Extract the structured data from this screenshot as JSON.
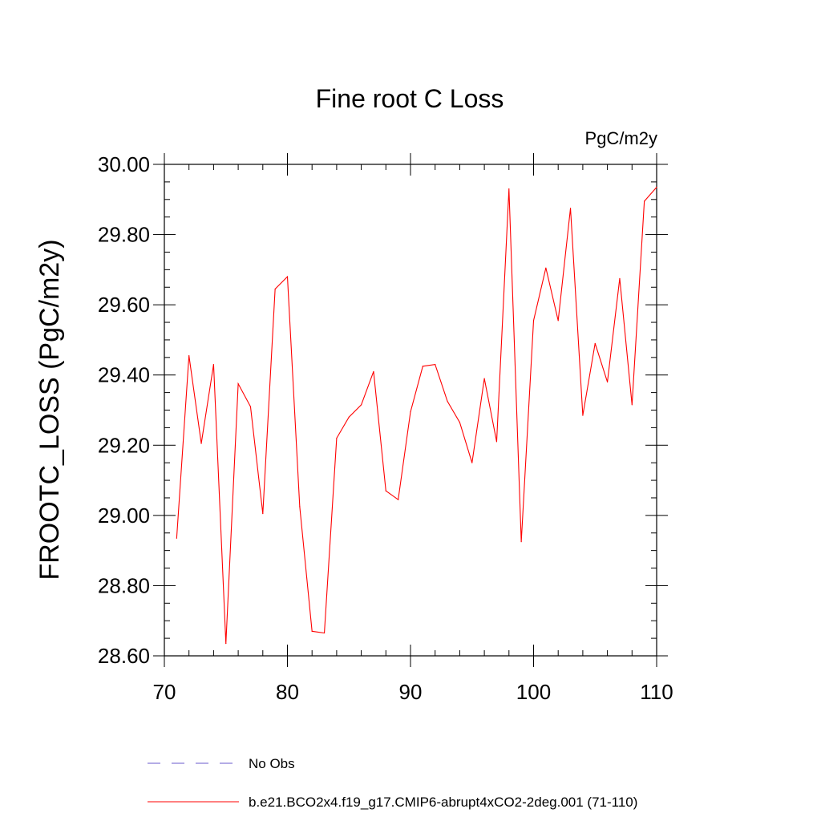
{
  "chart_data": {
    "type": "line",
    "title": "Fine root C Loss",
    "units_label": "PgC/m2y",
    "ylabel": "FROOTC_LOSS  (PgC/m2y)",
    "xlabel": "",
    "xlim": [
      70,
      110
    ],
    "ylim": [
      28.6,
      30.0
    ],
    "x_ticks": [
      "70",
      "80",
      "90",
      "100",
      "110"
    ],
    "y_ticks": [
      "28.60",
      "28.80",
      "29.00",
      "29.20",
      "29.40",
      "29.60",
      "29.80",
      "30.00"
    ],
    "series": [
      {
        "name": "b.e21.BCO2x4.f19_g17.CMIP6-abrupt4xCO2-2deg.001 (71-110)",
        "color": "#ff0000",
        "style": "solid",
        "x": [
          71,
          72,
          73,
          74,
          75,
          76,
          77,
          78,
          79,
          80,
          81,
          82,
          83,
          84,
          85,
          86,
          87,
          88,
          89,
          90,
          91,
          92,
          93,
          94,
          95,
          96,
          97,
          98,
          99,
          100,
          101,
          102,
          103,
          104,
          105,
          106,
          107,
          108,
          109,
          110
        ],
        "y": [
          28.935,
          29.455,
          29.205,
          29.43,
          28.635,
          29.375,
          29.31,
          29.005,
          29.645,
          29.68,
          29.025,
          28.67,
          28.665,
          29.22,
          29.28,
          29.315,
          29.41,
          29.07,
          29.045,
          29.295,
          29.425,
          29.43,
          29.325,
          29.265,
          29.15,
          29.39,
          29.21,
          29.93,
          28.925,
          29.555,
          29.705,
          29.555,
          29.875,
          29.285,
          29.49,
          29.38,
          29.675,
          29.315,
          29.895,
          29.935
        ]
      }
    ],
    "legend": [
      {
        "label": "No Obs",
        "color": "#6a5acd",
        "style": "dashed"
      },
      {
        "label": "b.e21.BCO2x4.f19_g17.CMIP6-abrupt4xCO2-2deg.001 (71-110)",
        "color": "#ff0000",
        "style": "solid"
      }
    ],
    "legend_position": "bottom",
    "grid": false
  }
}
